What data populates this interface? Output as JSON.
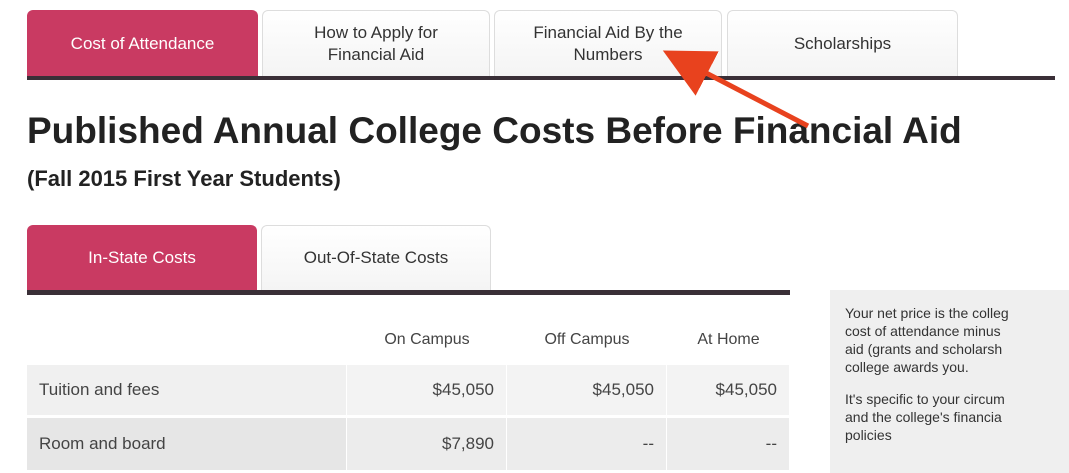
{
  "tabs": [
    "Cost of Attendance",
    "How to Apply for Financial Aid",
    "Financial Aid By the Numbers",
    "Scholarships"
  ],
  "title": "Published Annual College Costs Before Financial Aid",
  "subtitle": "(Fall 2015 First Year Students)",
  "subtabs": [
    "In-State Costs",
    "Out-Of-State Costs"
  ],
  "table": {
    "columns": [
      "On Campus",
      "Off Campus",
      "At Home"
    ],
    "rows": [
      [
        "Tuition and fees",
        "$45,050",
        "$45,050",
        "$45,050"
      ],
      [
        "Room and board",
        "$7,890",
        "--",
        "--"
      ]
    ]
  },
  "sidebar": {
    "lines": [
      "Your net price is the colleg",
      "cost of attendance minus",
      "aid (grants and scholarsh",
      "college awards you.",
      "It's specific to your circum",
      "and the college's financia",
      "policies"
    ]
  }
}
